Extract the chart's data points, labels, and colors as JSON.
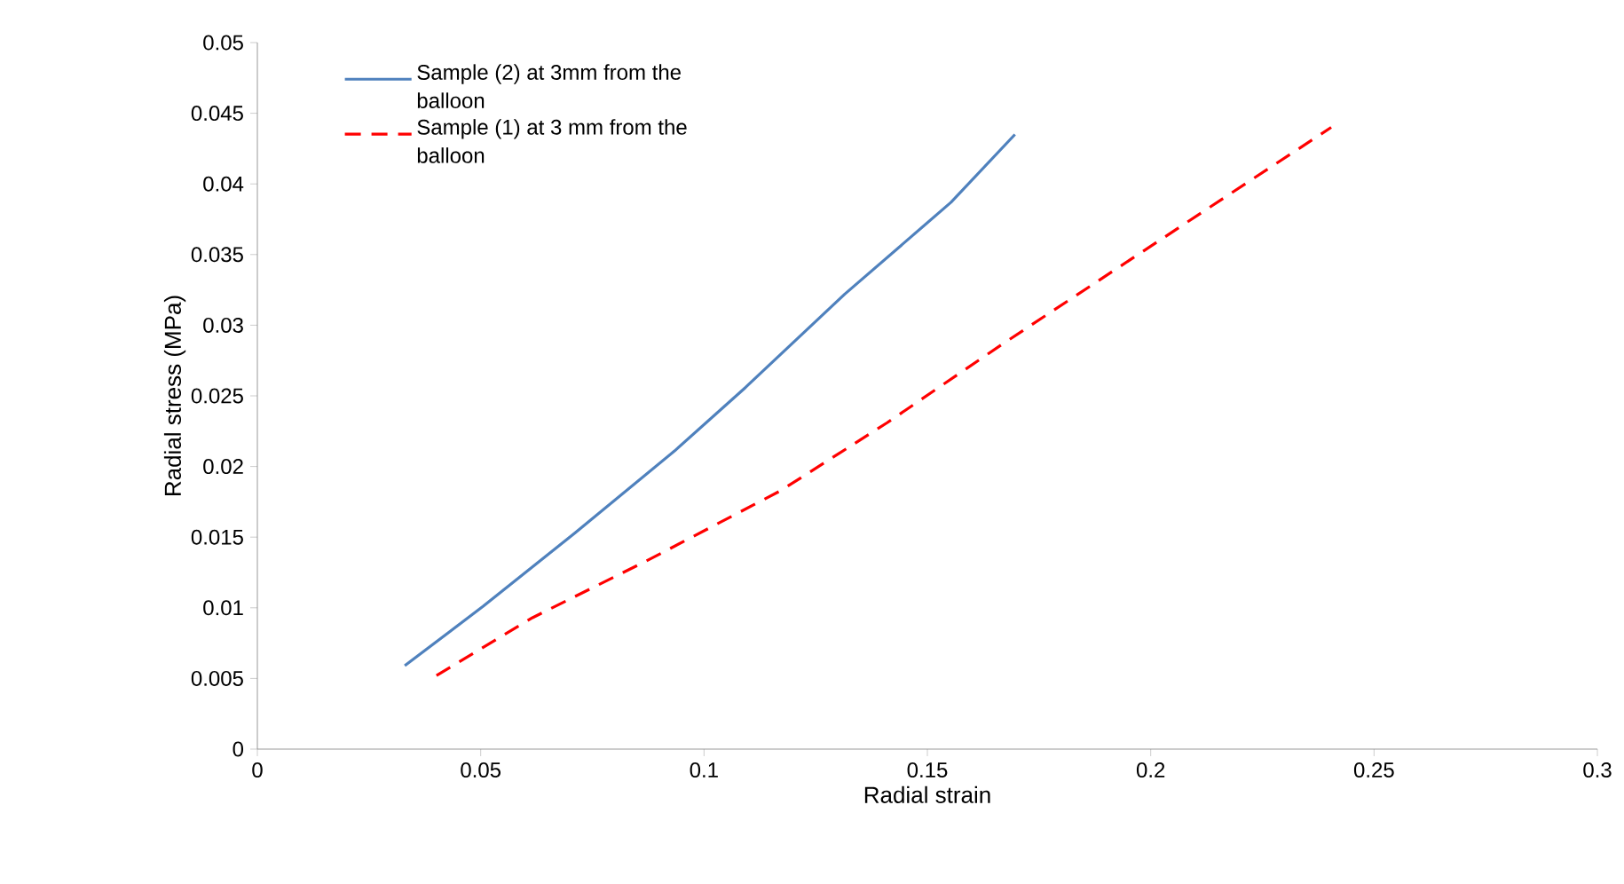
{
  "chart_data": {
    "type": "line",
    "xlabel": "Radial strain",
    "ylabel": "Radial stress (MPa)",
    "xlim": [
      0,
      0.3
    ],
    "xticks": [
      0,
      0.05,
      0.1,
      0.15,
      0.2,
      0.25,
      0.3
    ],
    "ylim": [
      0,
      0.05
    ],
    "yticks": [
      0,
      0.005,
      0.01,
      0.015,
      0.02,
      0.025,
      0.03,
      0.035,
      0.04,
      0.045,
      0.05
    ],
    "grid": false,
    "legend": "top left",
    "marker": "none",
    "series": [
      {
        "name": "Sample (2) at 3mm from the balloon",
        "color": "#4f81bd",
        "line_style": "solid",
        "x": [
          0.033,
          0.0505,
          0.0711,
          0.0934,
          0.1093,
          0.1315,
          0.1553,
          0.1696
        ],
        "values": [
          0.0059,
          0.0101,
          0.0153,
          0.0211,
          0.0256,
          0.0322,
          0.0387,
          0.0435
        ]
      },
      {
        "name": "Sample (1) at 3 mm from the balloon",
        "color": "#ff0000",
        "line_style": "dashed",
        "x": [
          0.0401,
          0.0616,
          0.087,
          0.1172,
          0.141,
          0.1665,
          0.1919,
          0.2173,
          0.2404
        ],
        "values": [
          0.0052,
          0.0093,
          0.0133,
          0.0183,
          0.0231,
          0.0286,
          0.0339,
          0.0392,
          0.044
        ]
      }
    ]
  }
}
